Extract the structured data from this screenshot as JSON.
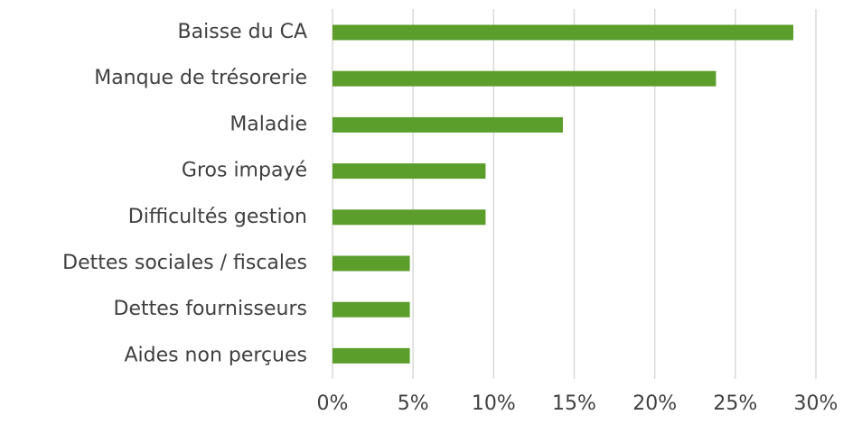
{
  "chart_data": {
    "type": "hbar",
    "categories": [
      "Baisse du CA",
      "Manque de trésorerie",
      "Maladie",
      "Gros impayé",
      "Difficultés gestion",
      "Dettes sociales / fiscales",
      "Dettes fournisseurs",
      "Aides non perçues"
    ],
    "values": [
      28.6,
      23.8,
      14.3,
      9.5,
      9.5,
      4.8,
      4.8,
      4.8
    ],
    "color": "#5b9e2b",
    "xlim": [
      0,
      30
    ],
    "xticks": [
      {
        "value": 0,
        "label": "0%"
      },
      {
        "value": 5,
        "label": "5%"
      },
      {
        "value": 10,
        "label": "10%"
      },
      {
        "value": 15,
        "label": "15%"
      },
      {
        "value": 20,
        "label": "20%"
      },
      {
        "value": 25,
        "label": "25%"
      },
      {
        "value": 30,
        "label": "30%"
      }
    ],
    "grid": true
  }
}
